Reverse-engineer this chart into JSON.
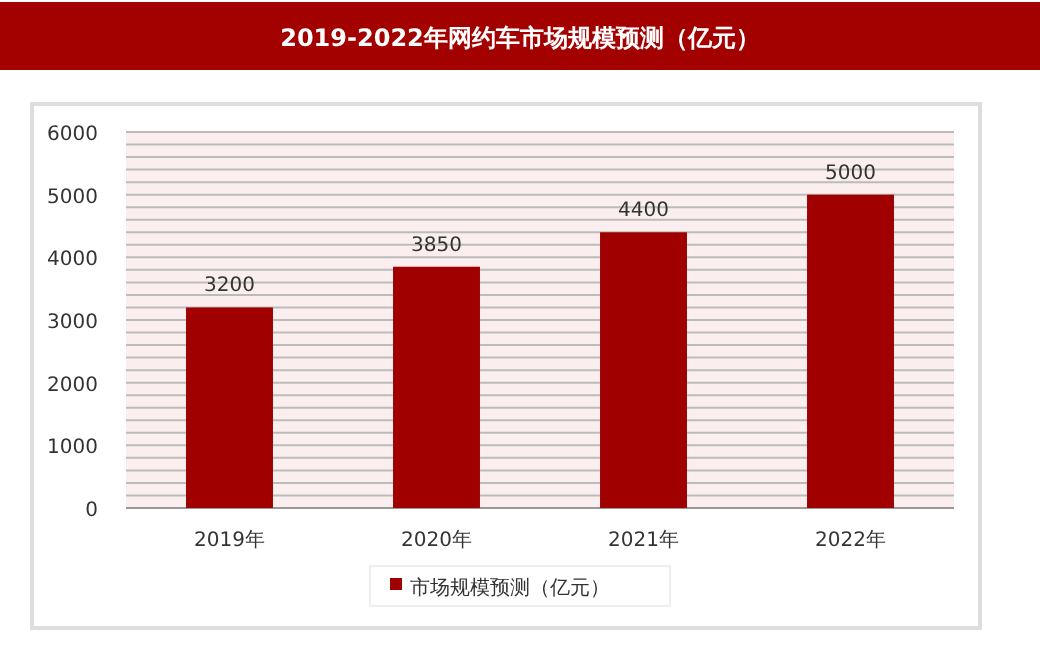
{
  "chart_data": {
    "type": "bar",
    "title": "2019-2022年网约车市场规模预测（亿元）",
    "categories": [
      "2019年",
      "2020年",
      "2021年",
      "2022年"
    ],
    "series": [
      {
        "name": "市场规模预测（亿元）",
        "color": "#a00000",
        "values": [
          3200,
          3850,
          4400,
          5000
        ]
      }
    ],
    "ylim": [
      0,
      6000
    ],
    "yticks": [
      0,
      {
        "value": 200,
        "label": null
      },
      {
        "value": 400,
        "label": null
      },
      {
        "value": 600,
        "label": null
      },
      {
        "value": 800,
        "label": null
      },
      1000,
      {
        "value": 1200,
        "label": null
      },
      {
        "value": 1400,
        "label": null
      },
      {
        "value": 1600,
        "label": null
      },
      {
        "value": 1800,
        "label": null
      },
      2000,
      {
        "value": 2200,
        "label": null
      },
      {
        "value": 2400,
        "label": null
      },
      {
        "value": 2600,
        "label": null
      },
      {
        "value": 2800,
        "label": null
      },
      3000,
      {
        "value": 3200,
        "label": null
      },
      {
        "value": 3400,
        "label": null
      },
      {
        "value": 3600,
        "label": null
      },
      {
        "value": 3800,
        "label": null
      },
      4000,
      {
        "value": 4200,
        "label": null
      },
      {
        "value": 4400,
        "label": null
      },
      {
        "value": 4600,
        "label": null
      },
      {
        "value": 4800,
        "label": null
      },
      5000,
      {
        "value": 5200,
        "label": null
      },
      {
        "value": 5400,
        "label": null
      },
      {
        "value": 5600,
        "label": null
      },
      {
        "value": 5800,
        "label": null
      },
      6000
    ],
    "grid": "y",
    "data_labels": true,
    "legend": "bottom"
  }
}
